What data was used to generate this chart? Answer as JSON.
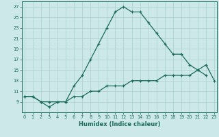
{
  "xlabel": "Humidex (Indice chaleur)",
  "color": "#1a6b5a",
  "bg_color": "#cce8e8",
  "grid_color": "#aacfcf",
  "ylim": [
    7,
    28
  ],
  "xlim": [
    0,
    23
  ],
  "yticks": [
    9,
    11,
    13,
    15,
    17,
    19,
    21,
    23,
    25,
    27
  ],
  "xticks": [
    0,
    1,
    2,
    3,
    4,
    5,
    6,
    7,
    8,
    9,
    10,
    11,
    12,
    13,
    14,
    15,
    16,
    17,
    18,
    19,
    20,
    21,
    22,
    23
  ],
  "series1_x": [
    0,
    1,
    2,
    3,
    4,
    5,
    6,
    7,
    8,
    9,
    10,
    11,
    12,
    13,
    14,
    15,
    16,
    17,
    18,
    19,
    20,
    21,
    22
  ],
  "series1_y": [
    10,
    10,
    9,
    8,
    9,
    9,
    12,
    14,
    17,
    20,
    23,
    26,
    27,
    26,
    26,
    24,
    22,
    20,
    18,
    18,
    16,
    15,
    14
  ],
  "series2_x": [
    0,
    1,
    2,
    3,
    4,
    5,
    6,
    7,
    8,
    9,
    10,
    11,
    12,
    13,
    14,
    15,
    16,
    17,
    18,
    19,
    20,
    21,
    22,
    23
  ],
  "series2_y": [
    10,
    10,
    9,
    9,
    9,
    9,
    10,
    10,
    11,
    11,
    12,
    12,
    12,
    13,
    13,
    13,
    13,
    14,
    14,
    14,
    14,
    15,
    16,
    13
  ]
}
